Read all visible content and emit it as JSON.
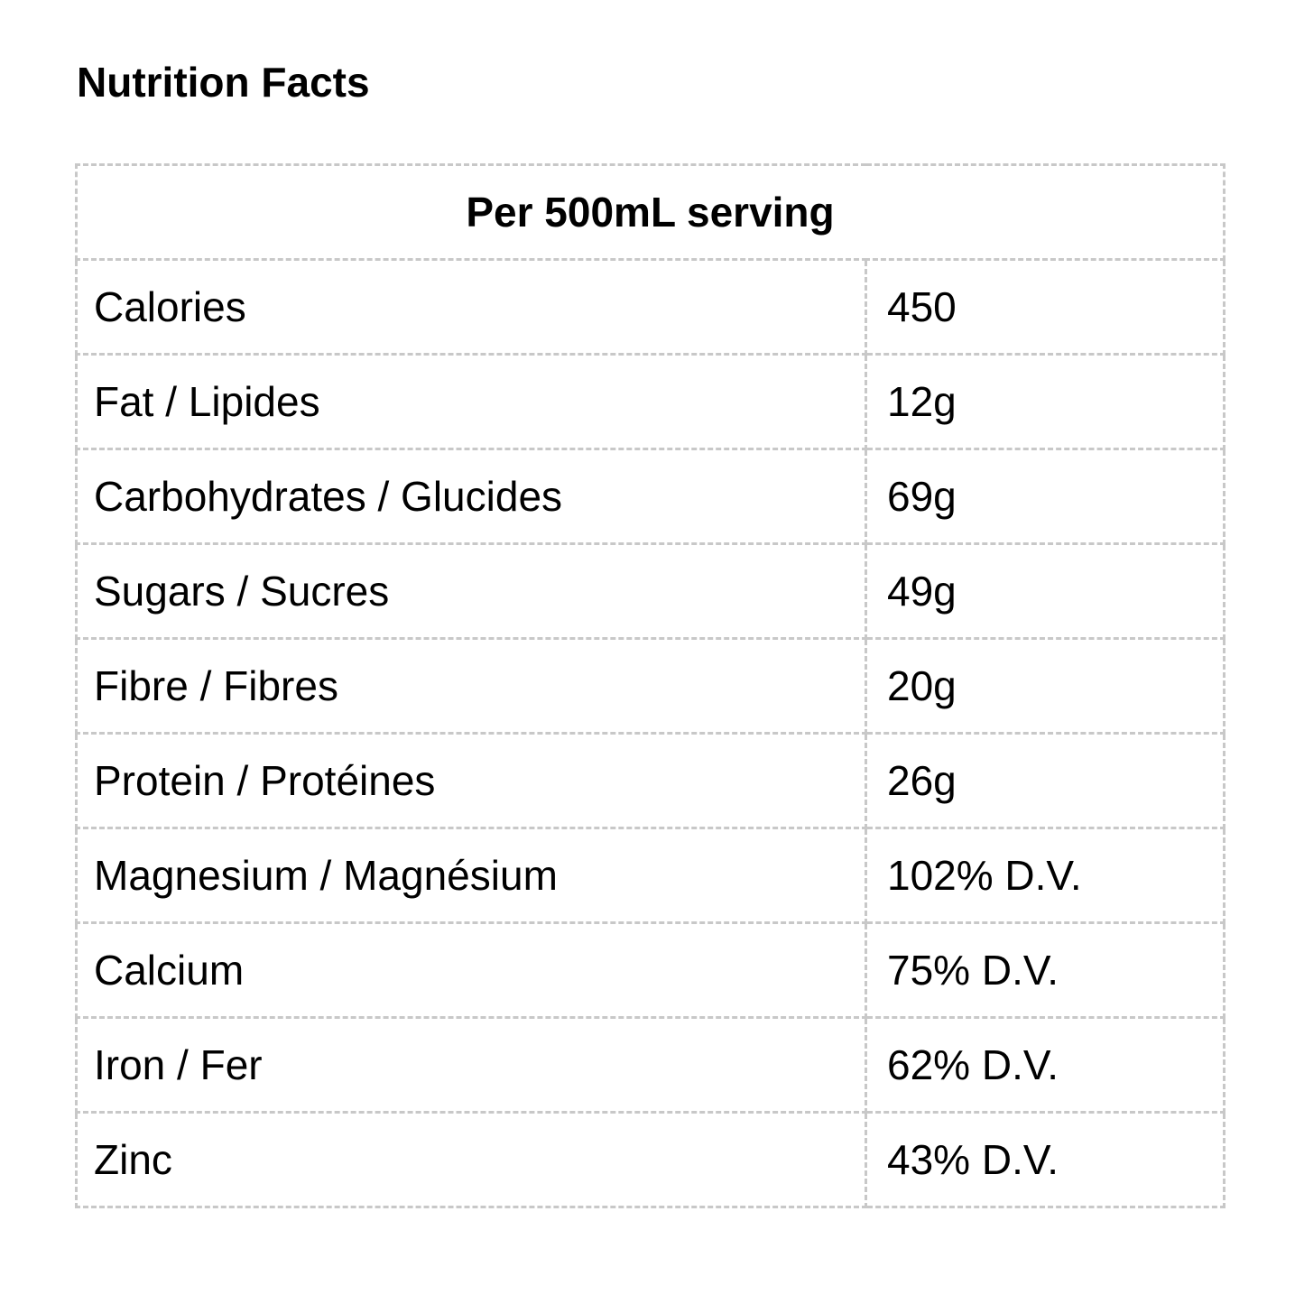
{
  "page": {
    "title": "Nutrition Facts"
  },
  "table": {
    "header": "Per 500mL serving",
    "rows": [
      {
        "label": "Calories",
        "value": "450"
      },
      {
        "label": "Fat / Lipides",
        "value": "12g"
      },
      {
        "label": "Carbohydrates / Glucides",
        "value": "69g"
      },
      {
        "label": "Sugars / Sucres",
        "value": "49g"
      },
      {
        "label": "Fibre / Fibres",
        "value": "20g"
      },
      {
        "label": "Protein / Protéines",
        "value": "26g"
      },
      {
        "label": "Magnesium / Magnésium",
        "value": "102% D.V."
      },
      {
        "label": "Calcium",
        "value": "75% D.V."
      },
      {
        "label": "Iron / Fer",
        "value": "62% D.V."
      },
      {
        "label": "Zinc",
        "value": "43% D.V."
      }
    ],
    "colors": {
      "border": "#c8c8c8",
      "text": "#000000",
      "background": "#ffffff"
    }
  }
}
